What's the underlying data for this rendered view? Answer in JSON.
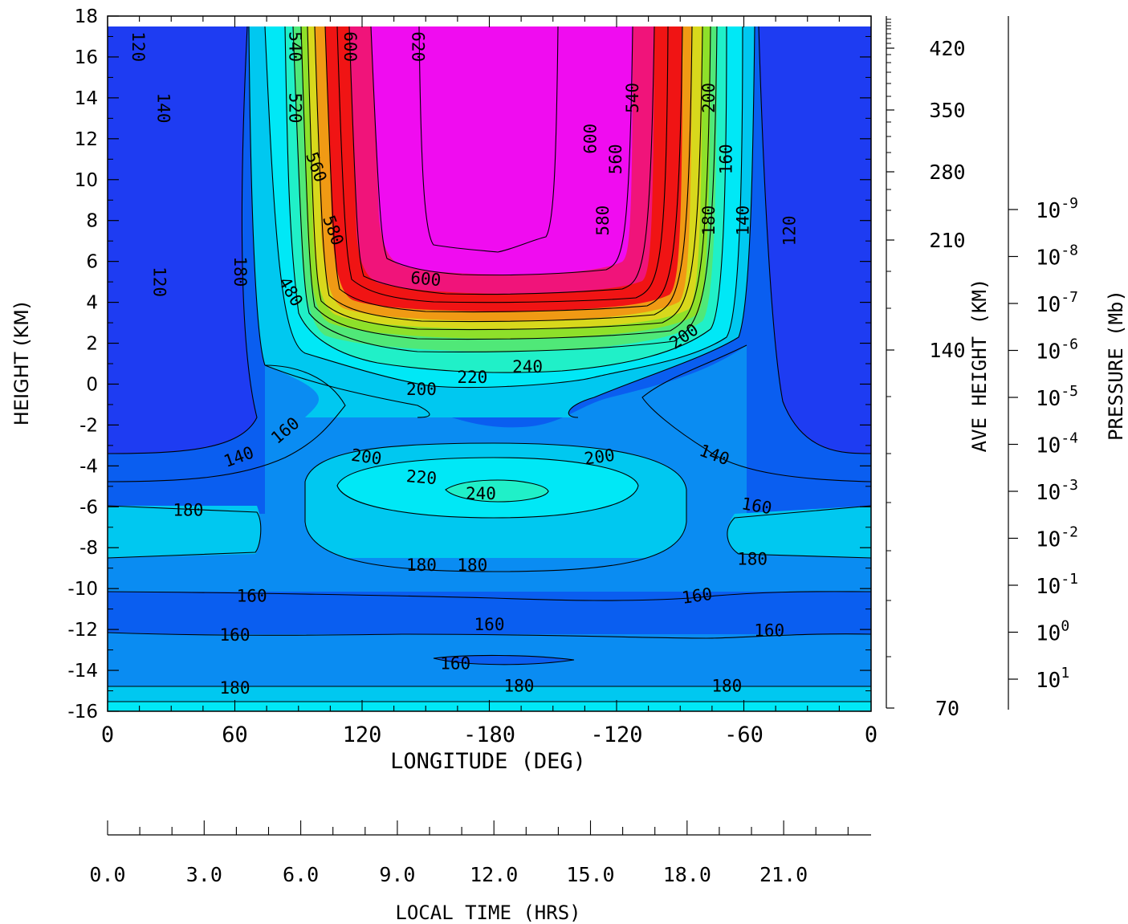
{
  "chart_data": {
    "type": "heatmap",
    "subtype": "filled-contour",
    "title": "",
    "xlabel": "LONGITUDE (DEG)",
    "ylabel": "HEIGHT (KM)",
    "right_label_1": "AVE HEIGHT (KM)",
    "right_label_2": "PRESSURE (Mb)",
    "bottom_label": "LOCAL TIME (HRS)",
    "ylim": [
      -16,
      18
    ],
    "x_ticks": [
      "0",
      "60",
      "120",
      "-180",
      "-120",
      "-60",
      "0"
    ],
    "y_ticks": [
      "18",
      "16",
      "14",
      "12",
      "10",
      "8",
      "6",
      "4",
      "2",
      "0",
      "-2",
      "-4",
      "-6",
      "-8",
      "-10",
      "-12",
      "-14",
      "-16"
    ],
    "ave_height_ticks": [
      "420",
      "350",
      "280",
      "210",
      "140",
      "70"
    ],
    "pressure_ticks": [
      {
        "base": "10",
        "exp": "-9"
      },
      {
        "base": "10",
        "exp": "-8"
      },
      {
        "base": "10",
        "exp": "-7"
      },
      {
        "base": "10",
        "exp": "-6"
      },
      {
        "base": "10",
        "exp": "-5"
      },
      {
        "base": "10",
        "exp": "-4"
      },
      {
        "base": "10",
        "exp": "-3"
      },
      {
        "base": "10",
        "exp": "-2"
      },
      {
        "base": "10",
        "exp": "-1"
      },
      {
        "base": "10",
        "exp": "0"
      },
      {
        "base": "10",
        "exp": "1"
      }
    ],
    "local_time_ticks": [
      "0.0",
      "3.0",
      "6.0",
      "9.0",
      "12.0",
      "15.0",
      "18.0",
      "21.0"
    ],
    "grid": false,
    "legend": "none",
    "colormap": [
      "#1e3cf2",
      "#0a5ef0",
      "#0a8cf2",
      "#00c8f0",
      "#00e8f6",
      "#20f0c8",
      "#50e878",
      "#8ee02a",
      "#d8d81c",
      "#f09a14",
      "#f01414",
      "#f0147a",
      "#f00cf0"
    ],
    "contour_labels": [
      {
        "text": "120",
        "lon": 7,
        "h": 16.5,
        "rot": 90
      },
      {
        "text": "140",
        "lon": 13,
        "h": 13.5,
        "rot": 90
      },
      {
        "text": "120",
        "lon": 12,
        "h": 5,
        "rot": 90
      },
      {
        "text": "180",
        "lon": 31,
        "h": 5.5,
        "rot": 90
      },
      {
        "text": "540",
        "lon": 44,
        "h": 16.5,
        "rot": 90
      },
      {
        "text": "520",
        "lon": 44,
        "h": 13.5,
        "rot": 90
      },
      {
        "text": "600",
        "lon": 57,
        "h": 16.5,
        "rot": 90
      },
      {
        "text": "620",
        "lon": 73,
        "h": 16.5,
        "rot": 90
      },
      {
        "text": "560",
        "lon": 49,
        "h": 10.6,
        "rot": 70
      },
      {
        "text": "580",
        "lon": 53,
        "h": 7.5,
        "rot": 70
      },
      {
        "text": "480",
        "lon": 43,
        "h": 4.5,
        "rot": 60
      },
      {
        "text": "600",
        "lon": 75,
        "h": 5.1,
        "rot": 5
      },
      {
        "text": "600",
        "lon": 114,
        "h": 12,
        "rot": -90
      },
      {
        "text": "560",
        "lon": 120,
        "h": 11,
        "rot": -90
      },
      {
        "text": "580",
        "lon": 117,
        "h": 8,
        "rot": -90
      },
      {
        "text": "540",
        "lon": 124,
        "h": 14,
        "rot": -90
      },
      {
        "text": "200",
        "lon": 142,
        "h": 14,
        "rot": -90
      },
      {
        "text": "160",
        "lon": 146,
        "h": 11,
        "rot": -90
      },
      {
        "text": "180",
        "lon": 142,
        "h": 8,
        "rot": -90
      },
      {
        "text": "140",
        "lon": 150,
        "h": 8,
        "rot": -90
      },
      {
        "text": "120",
        "lon": 161,
        "h": 7.5,
        "rot": -90
      },
      {
        "text": "200",
        "lon": 136,
        "h": 2.3,
        "rot": -35
      },
      {
        "text": "220",
        "lon": 86,
        "h": 0.3,
        "rot": 0
      },
      {
        "text": "240",
        "lon": 99,
        "h": 0.8,
        "rot": 0
      },
      {
        "text": "200",
        "lon": 74,
        "h": -0.3,
        "rot": 0
      },
      {
        "text": "160",
        "lon": 42,
        "h": -2.3,
        "rot": -40
      },
      {
        "text": "140",
        "lon": 31,
        "h": -3.6,
        "rot": -20
      },
      {
        "text": "200",
        "lon": 61,
        "h": -3.6,
        "rot": 8
      },
      {
        "text": "220",
        "lon": 74,
        "h": -4.6,
        "rot": 5
      },
      {
        "text": "240",
        "lon": 88,
        "h": -5.4,
        "rot": 0
      },
      {
        "text": "200",
        "lon": 116,
        "h": -3.6,
        "rot": -8
      },
      {
        "text": "140",
        "lon": 143,
        "h": -3.5,
        "rot": 20
      },
      {
        "text": "160",
        "lon": 153,
        "h": -6.0,
        "rot": 10
      },
      {
        "text": "180",
        "lon": 19,
        "h": -6.2,
        "rot": 0
      },
      {
        "text": "180",
        "lon": 74,
        "h": -8.9,
        "rot": 0
      },
      {
        "text": "180",
        "lon": 86,
        "h": -8.9,
        "rot": 0
      },
      {
        "text": "180",
        "lon": 152,
        "h": -8.6,
        "rot": 0
      },
      {
        "text": "160",
        "lon": 34,
        "h": -10.4,
        "rot": 0
      },
      {
        "text": "160",
        "lon": 139,
        "h": -10.4,
        "rot": -8
      },
      {
        "text": "160",
        "lon": 30,
        "h": -12.3,
        "rot": 0
      },
      {
        "text": "160",
        "lon": 90,
        "h": -11.8,
        "rot": 0
      },
      {
        "text": "160",
        "lon": 156,
        "h": -12.1,
        "rot": 0
      },
      {
        "text": "160",
        "lon": 82,
        "h": -13.7,
        "rot": 0
      },
      {
        "text": "180",
        "lon": 30,
        "h": -14.9,
        "rot": 0
      },
      {
        "text": "180",
        "lon": 97,
        "h": -14.8,
        "rot": 0
      },
      {
        "text": "180",
        "lon": 146,
        "h": -14.8,
        "rot": 0
      }
    ]
  }
}
